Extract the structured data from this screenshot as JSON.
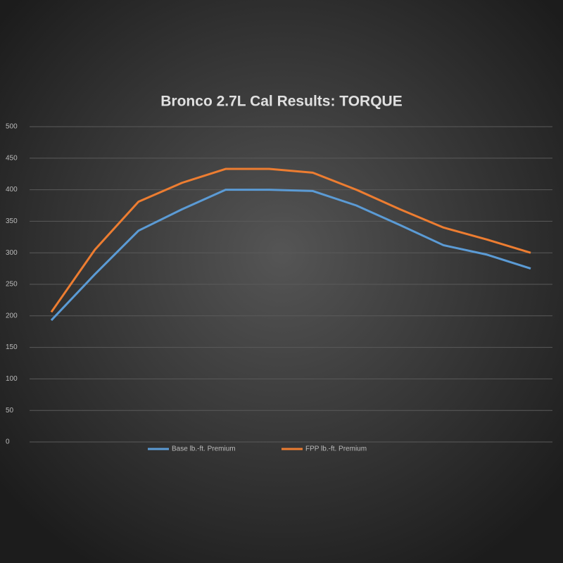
{
  "chart_data": {
    "type": "line",
    "title": "Bronco 2.7L Cal Results: TORQUE",
    "categories": [
      null,
      null,
      null,
      null,
      null,
      null,
      null,
      null,
      null,
      null,
      null,
      null
    ],
    "series": [
      {
        "name": "Base lb.-ft. Premium",
        "color": "#5b9bd5",
        "values": [
          193,
          266,
          335,
          369,
          400,
          400,
          398,
          375,
          344,
          312,
          297,
          275
        ]
      },
      {
        "name": "FPP lb.-ft. Premium",
        "color": "#ed7d31",
        "values": [
          206,
          305,
          381,
          411,
          433,
          433,
          427,
          400,
          369,
          340,
          321,
          300
        ]
      }
    ],
    "ylim": [
      0,
      500
    ],
    "yticks": [
      0,
      50,
      100,
      150,
      200,
      250,
      300,
      350,
      400,
      450,
      500
    ],
    "grid": true,
    "legend": "bottom"
  }
}
